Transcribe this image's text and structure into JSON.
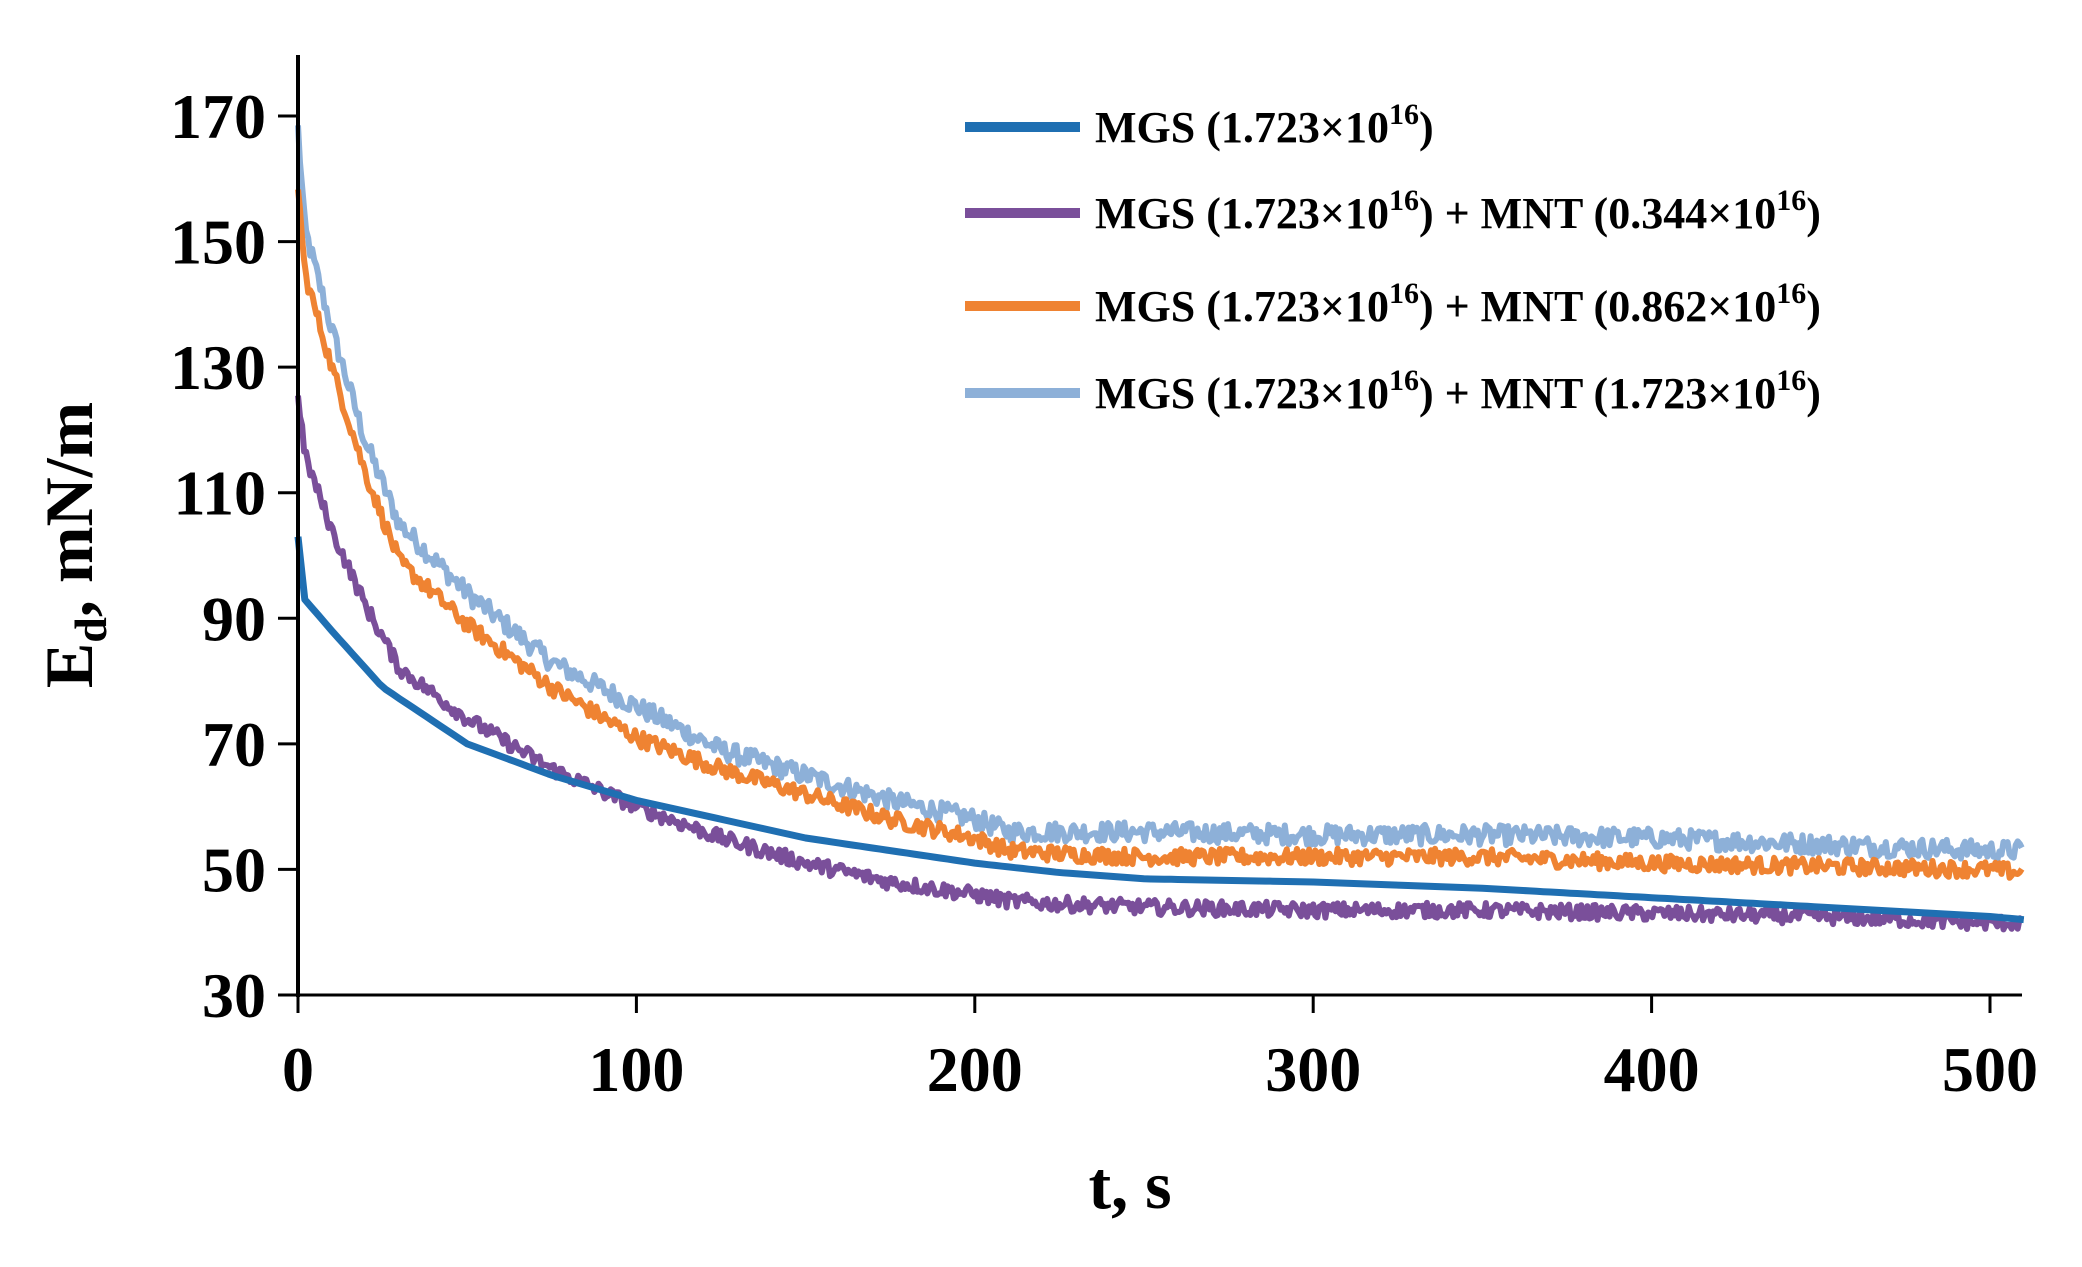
{
  "chart_data": {
    "type": "line",
    "title": "",
    "xlabel": "t, s",
    "ylabel_main": "E",
    "ylabel_sub": "d",
    "ylabel_rest": ", mN/m",
    "xlim": [
      0,
      510
    ],
    "ylim": [
      30,
      180
    ],
    "xticks": [
      0,
      100,
      200,
      300,
      400,
      500
    ],
    "yticks": [
      30,
      50,
      70,
      90,
      110,
      130,
      150,
      170
    ],
    "grid": false,
    "legend_position": "top-right",
    "series": [
      {
        "name": "MGS (1.723×10^16)",
        "legend": {
          "a": "MGS (1.723×10",
          "sup1": "16",
          "b": ")",
          "sup2": "",
          "c": ""
        },
        "color": "#1f6fb2",
        "noise": 0,
        "x": [
          0,
          2,
          10,
          25,
          50,
          75,
          100,
          125,
          150,
          175,
          200,
          225,
          250,
          300,
          350,
          400,
          450,
          500,
          510
        ],
        "y": [
          103,
          93,
          88,
          79,
          70,
          65,
          61,
          58,
          55,
          53,
          51,
          49.5,
          48.5,
          48,
          47,
          45.5,
          44,
          42.5,
          42
        ]
      },
      {
        "name": "MGS (1.723×10^16) + MNT (0.344×10^16)",
        "legend": {
          "a": "MGS (1.723×10",
          "sup1": "16",
          "b": ") + MNT (0.344×10",
          "sup2": "16",
          "c": ")"
        },
        "color": "#7a4f9a",
        "noise": 1.2,
        "x": [
          0,
          2,
          10,
          20,
          30,
          50,
          75,
          100,
          125,
          150,
          175,
          200,
          210,
          225,
          250,
          300,
          350,
          400,
          450,
          500,
          510
        ],
        "y": [
          126,
          116,
          104,
          92,
          82,
          74,
          66,
          60,
          55,
          51,
          48,
          46,
          45,
          44.5,
          44,
          43.5,
          43.5,
          43,
          42.5,
          41.5,
          41.5
        ]
      },
      {
        "name": "MGS (1.723×10^16) + MNT (0.862×10^16)",
        "legend": {
          "a": "MGS (1.723×10",
          "sup1": "16",
          "b": ") + MNT (0.862×10",
          "sup2": "16",
          "c": ")"
        },
        "color": "#ef8332",
        "noise": 1.3,
        "x": [
          0,
          2,
          10,
          20,
          30,
          50,
          75,
          100,
          125,
          150,
          175,
          200,
          210,
          225,
          250,
          300,
          350,
          400,
          450,
          500,
          510
        ],
        "y": [
          159,
          145,
          130,
          113,
          99,
          89,
          79,
          71,
          66,
          62,
          58,
          55,
          53,
          52.5,
          52,
          52,
          52,
          51,
          50.5,
          50,
          49.5
        ]
      },
      {
        "name": "MGS (1.723×10^16) + MNT (1.723×10^16)",
        "legend": {
          "a": "MGS (1.723×10",
          "sup1": "16",
          "b": ") + MNT (1.723×10",
          "sup2": "16",
          "c": ")"
        },
        "color": "#8db0d8",
        "noise": 1.6,
        "x": [
          0,
          2,
          10,
          20,
          30,
          50,
          75,
          100,
          125,
          150,
          175,
          200,
          210,
          225,
          250,
          300,
          350,
          400,
          450,
          500,
          510
        ],
        "y": [
          168,
          152,
          136,
          118,
          105,
          94,
          83,
          76,
          69,
          65,
          61,
          58,
          56,
          56,
          56,
          55.5,
          55.5,
          55,
          54,
          53,
          53
        ]
      }
    ]
  }
}
